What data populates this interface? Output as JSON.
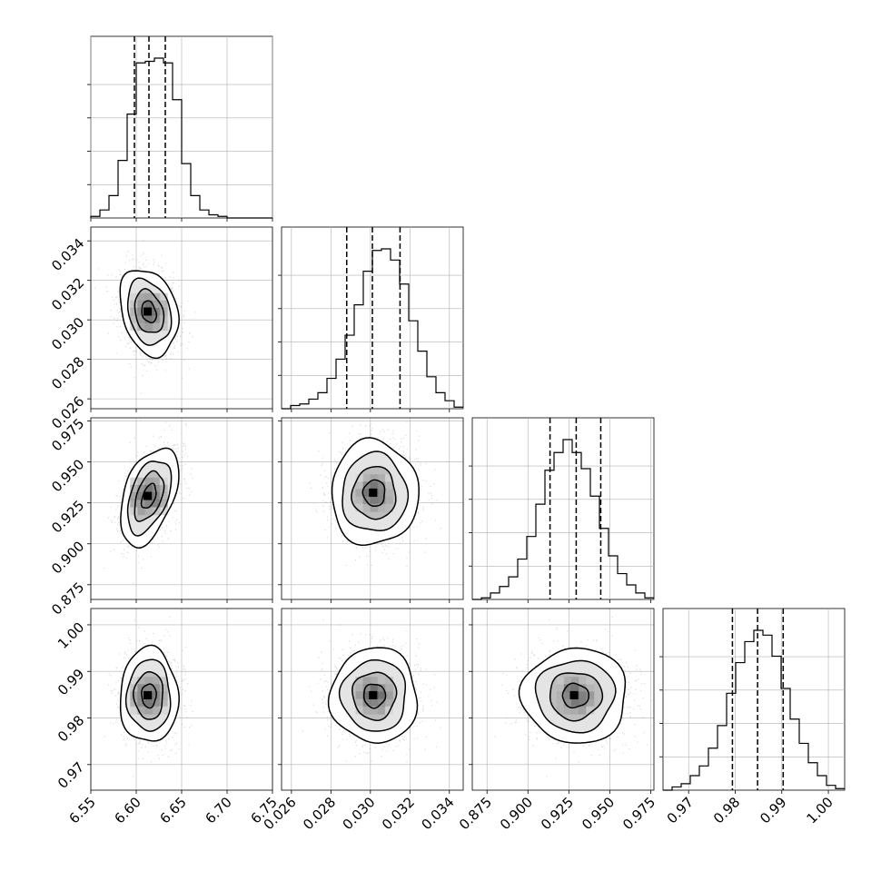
{
  "chart_data": {
    "type": "corner",
    "grid": true,
    "params": [
      {
        "range": [
          6.55,
          6.75
        ],
        "ticks": [
          "6.55",
          "6.60",
          "6.65",
          "6.70",
          "6.75"
        ],
        "tick_values": [
          6.55,
          6.6,
          6.65,
          6.7,
          6.75
        ],
        "quantiles": [
          6.598,
          6.614,
          6.632
        ],
        "hist": {
          "edges_start": 6.55,
          "bin_width": 0.01,
          "counts": [
            0.01,
            0.05,
            0.14,
            0.36,
            0.65,
            0.97,
            0.98,
            1.0,
            0.97,
            0.74,
            0.34,
            0.14,
            0.05,
            0.02,
            0.01,
            0.0,
            0.0,
            0.0,
            0.0,
            0.0
          ]
        }
      },
      {
        "range": [
          0.0255,
          0.0347
        ],
        "ticks": [
          "0.026",
          "0.028",
          "0.030",
          "0.032",
          "0.034"
        ],
        "tick_values": [
          0.026,
          0.028,
          0.03,
          0.032,
          0.034
        ],
        "quantiles": [
          0.0288,
          0.0301,
          0.0315
        ],
        "hist": {
          "edges_start": 0.0255,
          "bin_width": 0.00046,
          "counts": [
            0.0,
            0.02,
            0.03,
            0.06,
            0.1,
            0.19,
            0.31,
            0.46,
            0.65,
            0.86,
            0.99,
            1.0,
            0.93,
            0.78,
            0.55,
            0.36,
            0.2,
            0.1,
            0.05,
            0.01
          ]
        }
      },
      {
        "range": [
          0.866,
          0.977
        ],
        "ticks": [
          "0.875",
          "0.900",
          "0.925",
          "0.950",
          "0.975"
        ],
        "tick_values": [
          0.875,
          0.9,
          0.925,
          0.95,
          0.975
        ],
        "quantiles": [
          0.9135,
          0.9295,
          0.9445
        ],
        "hist": {
          "edges_start": 0.866,
          "bin_width": 0.00555,
          "counts": [
            0.0,
            0.01,
            0.04,
            0.08,
            0.14,
            0.25,
            0.39,
            0.59,
            0.8,
            0.91,
            0.99,
            0.91,
            0.81,
            0.64,
            0.44,
            0.27,
            0.16,
            0.09,
            0.04,
            0.01
          ]
        }
      },
      {
        "range": [
          0.9645,
          1.0035
        ],
        "ticks": [
          "0.97",
          "0.98",
          "0.99",
          "1.00"
        ],
        "tick_values": [
          0.97,
          0.98,
          0.99,
          1.0
        ],
        "quantiles": [
          0.9794,
          0.9848,
          0.9903
        ],
        "hist": {
          "edges_start": 0.9645,
          "bin_width": 0.00195,
          "counts": [
            0.0,
            0.02,
            0.04,
            0.09,
            0.15,
            0.26,
            0.4,
            0.6,
            0.79,
            0.92,
            0.99,
            0.96,
            0.83,
            0.63,
            0.44,
            0.29,
            0.17,
            0.09,
            0.03,
            0.01
          ]
        }
      }
    ],
    "pairs": [
      {
        "x": 0,
        "y": 1,
        "center": [
          6.614,
          0.0304
        ],
        "sd": [
          0.016,
          0.0011
        ],
        "rho": -0.25
      },
      {
        "x": 0,
        "y": 2,
        "center": [
          6.614,
          0.929
        ],
        "sd": [
          0.016,
          0.015
        ],
        "rho": 0.45
      },
      {
        "x": 1,
        "y": 2,
        "center": [
          0.0302,
          0.931
        ],
        "sd": [
          0.0011,
          0.016
        ],
        "rho": 0.0
      },
      {
        "x": 0,
        "y": 3,
        "center": [
          6.614,
          0.9848
        ],
        "sd": [
          0.016,
          0.0051
        ],
        "rho": 0.0
      },
      {
        "x": 1,
        "y": 3,
        "center": [
          0.0302,
          0.9848
        ],
        "sd": [
          0.0011,
          0.0051
        ],
        "rho": 0.0
      },
      {
        "x": 2,
        "y": 3,
        "center": [
          0.929,
          0.9848
        ],
        "sd": [
          0.016,
          0.0051
        ],
        "rho": 0.0
      }
    ],
    "contour_levels_sigma": [
      0.5,
      1.0,
      1.5,
      2.0
    ],
    "colors": {
      "line": "#000000",
      "grid": "#b0b0b0",
      "scatter": "#9a9a9a"
    }
  }
}
